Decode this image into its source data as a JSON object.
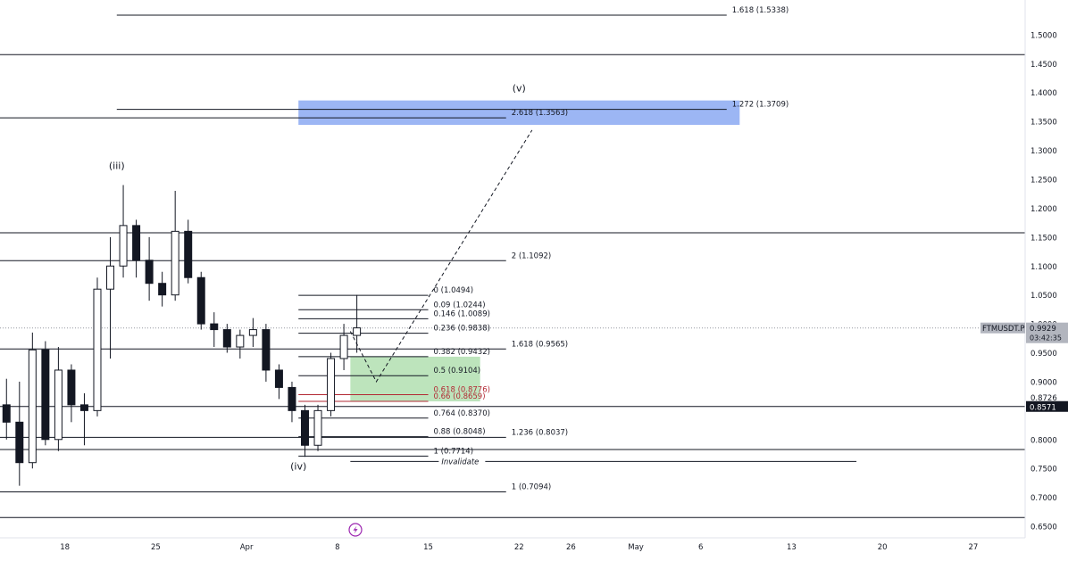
{
  "chart_data": {
    "type": "candlestick",
    "symbol": "FTMUSDT.P",
    "y_axis": {
      "scale": "linear",
      "range": [
        0.63,
        1.56
      ],
      "ticks": [
        "1.5000",
        "1.4500",
        "1.4000",
        "1.3500",
        "1.3000",
        "1.2500",
        "1.2000",
        "1.1500",
        "1.1000",
        "1.0500",
        "0.9500",
        "0.9000",
        "0.8000",
        "0.7500",
        "0.7000",
        "0.6500"
      ],
      "partial_ticks": [
        "1.0000",
        "0.8726"
      ]
    },
    "x_axis": {
      "range": [
        "2024-03-13",
        "2024-05-31"
      ],
      "ticks": [
        {
          "label": "18",
          "date": "2024-03-18"
        },
        {
          "label": "25",
          "date": "2024-03-25"
        },
        {
          "label": "Apr",
          "date": "2024-04-01"
        },
        {
          "label": "8",
          "date": "2024-04-08"
        },
        {
          "label": "15",
          "date": "2024-04-15"
        },
        {
          "label": "22",
          "date": "2024-04-22"
        },
        {
          "label": "26",
          "date": "2024-04-26"
        },
        {
          "label": "May",
          "date": "2024-05-01"
        },
        {
          "label": "6",
          "date": "2024-05-06"
        },
        {
          "label": "13",
          "date": "2024-05-13"
        },
        {
          "label": "20",
          "date": "2024-05-20"
        },
        {
          "label": "27",
          "date": "2024-05-27"
        }
      ]
    },
    "price_tags": [
      {
        "label": "FTMUSDT.P",
        "value": "0.9929",
        "countdown": "03:42:35",
        "price": 0.9929,
        "style": "grey"
      },
      {
        "label": "",
        "value": "0.8571",
        "price": 0.8571,
        "style": "dark"
      }
    ],
    "horizontal_levels": [
      {
        "price": 1.4655,
        "from": "2024-03-13",
        "to": "2024-05-31"
      },
      {
        "price": 1.1575,
        "from": "2024-03-13",
        "to": "2024-05-31"
      },
      {
        "price": 0.8571,
        "from": "2024-03-13",
        "to": "2024-05-31"
      },
      {
        "price": 0.7827,
        "from": "2024-03-13",
        "to": "2024-05-31"
      },
      {
        "price": 0.665,
        "from": "2024-03-13",
        "to": "2024-05-31"
      }
    ],
    "fib_extension_upper": {
      "from": "2024-03-22",
      "to": "2024-05-08",
      "levels": [
        {
          "ratio": "1.618",
          "price": 1.5338,
          "label": "1.618 (1.5338)"
        },
        {
          "ratio": "1.272",
          "price": 1.3709,
          "label": "1.272 (1.3709)"
        }
      ]
    },
    "fib_extension_lower": {
      "from": "2024-03-13",
      "to": "2024-04-21",
      "levels": [
        {
          "ratio": "2.618",
          "price": 1.3563,
          "label": "2.618 (1.3563)"
        },
        {
          "ratio": "2",
          "price": 1.1092,
          "label": "2 (1.1092)"
        },
        {
          "ratio": "1.618",
          "price": 0.9565,
          "label": "1.618 (0.9565)"
        },
        {
          "ratio": "1.236",
          "price": 0.8037,
          "label": "1.236 (0.8037)"
        },
        {
          "ratio": "1",
          "price": 0.7094,
          "label": "1 (0.7094)"
        }
      ]
    },
    "fib_retracement": {
      "from": "2024-04-05",
      "to": "2024-04-15",
      "levels": [
        {
          "ratio": "0",
          "price": 1.0494,
          "label": "0 (1.0494)",
          "color": "#131722"
        },
        {
          "ratio": "0.09",
          "price": 1.0244,
          "label": "0.09 (1.0244)",
          "color": "#131722"
        },
        {
          "ratio": "0.146",
          "price": 1.0089,
          "label": "0.146 (1.0089)",
          "color": "#131722"
        },
        {
          "ratio": "0.236",
          "price": 0.9838,
          "label": "0.236 (0.9838)",
          "color": "#131722"
        },
        {
          "ratio": "0.382",
          "price": 0.9432,
          "label": "0.382 (0.9432)",
          "color": "#131722"
        },
        {
          "ratio": "0.5",
          "price": 0.9104,
          "label": "0.5 (0.9104)",
          "color": "#131722"
        },
        {
          "ratio": "0.618",
          "price": 0.8776,
          "label": "0.618 (0.8776)",
          "color": "#b22833"
        },
        {
          "ratio": "0.66",
          "price": 0.8659,
          "label": "0.66 (0.8659)",
          "color": "#b22833"
        },
        {
          "ratio": "0.764",
          "price": 0.837,
          "label": "0.764 (0.8370)",
          "color": "#131722"
        },
        {
          "ratio": "0.88",
          "price": 0.8048,
          "label": "0.88 (0.8048)",
          "color": "#131722"
        },
        {
          "ratio": "1",
          "price": 0.7714,
          "label": "1 (0.7714)",
          "color": "#131722"
        }
      ]
    },
    "invalidation_line": {
      "label": "Invalidate",
      "price": 0.7714,
      "from": "2024-04-09",
      "to": "2024-05-18"
    },
    "zones": [
      {
        "name": "target-zone",
        "from": "2024-04-05",
        "to": "2024-05-09",
        "top": 1.3863,
        "bottom": 1.3441,
        "color": "#8ba9f2"
      },
      {
        "name": "buy-zone",
        "from": "2024-04-09",
        "to": "2024-04-19",
        "top": 0.9432,
        "bottom": 0.8659,
        "color": "#b2dfb0"
      }
    ],
    "wave_labels": [
      {
        "text": "(iii)",
        "date": "2024-03-22",
        "price": 1.268
      },
      {
        "text": "(iv)",
        "date": "2024-04-05",
        "price": 0.748
      },
      {
        "text": "(v)",
        "date": "2024-04-22",
        "price": 1.402
      }
    ],
    "projection_path": [
      {
        "date": "2024-04-09",
        "price": 0.987
      },
      {
        "date": "2024-04-11",
        "price": 0.9
      },
      {
        "date": "2024-04-23",
        "price": 1.335
      }
    ],
    "current_price_line": 0.9929,
    "candles": [
      {
        "d": "2024-03-13",
        "o": 0.86,
        "h": 0.905,
        "l": 0.8,
        "c": 0.83
      },
      {
        "d": "2024-03-14",
        "o": 0.83,
        "h": 0.9,
        "l": 0.72,
        "c": 0.76
      },
      {
        "d": "2024-03-15",
        "o": 0.76,
        "h": 0.985,
        "l": 0.75,
        "c": 0.955
      },
      {
        "d": "2024-03-16",
        "o": 0.955,
        "h": 0.97,
        "l": 0.79,
        "c": 0.8
      },
      {
        "d": "2024-03-17",
        "o": 0.8,
        "h": 0.96,
        "l": 0.78,
        "c": 0.92
      },
      {
        "d": "2024-03-18",
        "o": 0.92,
        "h": 0.93,
        "l": 0.83,
        "c": 0.86
      },
      {
        "d": "2024-03-19",
        "o": 0.86,
        "h": 0.88,
        "l": 0.79,
        "c": 0.85
      },
      {
        "d": "2024-03-20",
        "o": 0.85,
        "h": 1.08,
        "l": 0.84,
        "c": 1.06
      },
      {
        "d": "2024-03-21",
        "o": 1.06,
        "h": 1.15,
        "l": 0.94,
        "c": 1.1
      },
      {
        "d": "2024-03-22",
        "o": 1.1,
        "h": 1.24,
        "l": 1.08,
        "c": 1.17
      },
      {
        "d": "2024-03-23",
        "o": 1.17,
        "h": 1.18,
        "l": 1.08,
        "c": 1.11
      },
      {
        "d": "2024-03-24",
        "o": 1.11,
        "h": 1.15,
        "l": 1.04,
        "c": 1.07
      },
      {
        "d": "2024-03-25",
        "o": 1.07,
        "h": 1.09,
        "l": 1.03,
        "c": 1.05
      },
      {
        "d": "2024-03-26",
        "o": 1.05,
        "h": 1.23,
        "l": 1.04,
        "c": 1.16
      },
      {
        "d": "2024-03-27",
        "o": 1.16,
        "h": 1.18,
        "l": 1.07,
        "c": 1.08
      },
      {
        "d": "2024-03-28",
        "o": 1.08,
        "h": 1.09,
        "l": 0.99,
        "c": 1.0
      },
      {
        "d": "2024-03-29",
        "o": 1.0,
        "h": 1.02,
        "l": 0.96,
        "c": 0.99
      },
      {
        "d": "2024-03-30",
        "o": 0.99,
        "h": 1.0,
        "l": 0.95,
        "c": 0.96
      },
      {
        "d": "2024-03-31",
        "o": 0.96,
        "h": 0.99,
        "l": 0.94,
        "c": 0.98
      },
      {
        "d": "2024-04-01",
        "o": 0.98,
        "h": 1.01,
        "l": 0.96,
        "c": 0.99
      },
      {
        "d": "2024-04-02",
        "o": 0.99,
        "h": 1.0,
        "l": 0.9,
        "c": 0.92
      },
      {
        "d": "2024-04-03",
        "o": 0.92,
        "h": 0.93,
        "l": 0.87,
        "c": 0.89
      },
      {
        "d": "2024-04-04",
        "o": 0.89,
        "h": 0.9,
        "l": 0.83,
        "c": 0.85
      },
      {
        "d": "2024-04-05",
        "o": 0.85,
        "h": 0.86,
        "l": 0.77,
        "c": 0.79
      },
      {
        "d": "2024-04-06",
        "o": 0.79,
        "h": 0.86,
        "l": 0.78,
        "c": 0.85
      },
      {
        "d": "2024-04-07",
        "o": 0.85,
        "h": 0.95,
        "l": 0.84,
        "c": 0.94
      },
      {
        "d": "2024-04-08",
        "o": 0.94,
        "h": 1.0,
        "l": 0.92,
        "c": 0.98
      },
      {
        "d": "2024-04-09",
        "o": 0.98,
        "h": 1.05,
        "l": 0.95,
        "c": 0.993
      }
    ]
  }
}
